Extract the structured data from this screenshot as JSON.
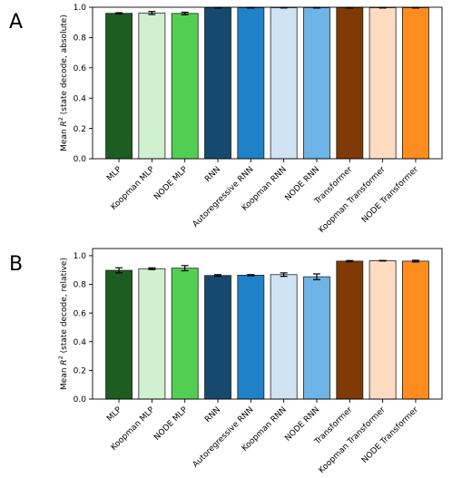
{
  "chart_data": [
    {
      "type": "bar",
      "panel_label": "A",
      "ylabel_prefix": "Mean ",
      "ylabel_symbol": "R",
      "ylabel_sup": "2",
      "ylabel_suffix": " (state decode, absolute)",
      "ylim": [
        0.0,
        1.0
      ],
      "yticks": [
        "0.0",
        "0.2",
        "0.4",
        "0.6",
        "0.8",
        "1.0"
      ],
      "grid": false,
      "categories": [
        "MLP",
        "Koopman MLP",
        "NODE MLP",
        "RNN",
        "Autoregressive RNN",
        "Koopman RNN",
        "NODE RNN",
        "Transformer",
        "Koopman Transformer",
        "NODE Transformer"
      ],
      "values": [
        0.96,
        0.962,
        0.959,
        0.997,
        0.997,
        0.997,
        0.997,
        0.997,
        0.997,
        0.997
      ],
      "errors": [
        0.004,
        0.01,
        0.008,
        0.002,
        0.002,
        0.002,
        0.002,
        0.002,
        0.002,
        0.002
      ],
      "colors": [
        "#1b5e20",
        "#d0f0d0",
        "#52cf52",
        "#154a6e",
        "#1f82c8",
        "#cfe3f5",
        "#6eb4e6",
        "#7f3a06",
        "#ffdcc0",
        "#ff8c1f"
      ]
    },
    {
      "type": "bar",
      "panel_label": "B",
      "ylabel_prefix": "Mean ",
      "ylabel_symbol": "R",
      "ylabel_sup": "2",
      "ylabel_suffix": " (state decode, relative)",
      "ylim": [
        0.0,
        1.05
      ],
      "yticks": [
        "0.0",
        "0.2",
        "0.4",
        "0.6",
        "0.8",
        "1.0"
      ],
      "grid": false,
      "categories": [
        "MLP",
        "Koopman MLP",
        "NODE MLP",
        "RNN",
        "Autoregressive RNN",
        "Koopman RNN",
        "NODE RNN",
        "Transformer",
        "Koopman Transformer",
        "NODE Transformer"
      ],
      "values": [
        0.898,
        0.909,
        0.913,
        0.862,
        0.864,
        0.868,
        0.853,
        0.962,
        0.965,
        0.962
      ],
      "errors": [
        0.018,
        0.006,
        0.018,
        0.006,
        0.004,
        0.012,
        0.02,
        0.004,
        0.002,
        0.006
      ],
      "colors": [
        "#1b5e20",
        "#d0f0d0",
        "#52cf52",
        "#154a6e",
        "#1f82c8",
        "#cfe3f5",
        "#6eb4e6",
        "#7f3a06",
        "#ffdcc0",
        "#ff8c1f"
      ]
    }
  ]
}
